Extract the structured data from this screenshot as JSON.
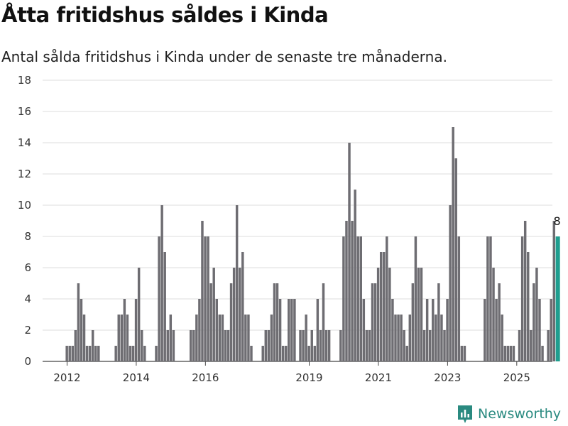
{
  "title": "Åtta fritidshus såldes i Kinda",
  "subtitle": "Antal sålda fritidshus i Kinda under de senaste tre månaderna.",
  "brand": {
    "name": "Newsworthy",
    "icon": "newsworthy-logo-icon",
    "color": "#2a8a80"
  },
  "chart_data": {
    "type": "bar",
    "title": "Åtta fritidshus såldes i Kinda",
    "subtitle": "Antal sålda fritidshus i Kinda under de senaste tre månaderna.",
    "ylim": [
      0,
      18
    ],
    "yticks": [
      0,
      2,
      4,
      6,
      8,
      10,
      12,
      14,
      16,
      18
    ],
    "xticks": [
      {
        "label": "2012",
        "month_index": 7
      },
      {
        "label": "2014",
        "month_index": 31
      },
      {
        "label": "2016",
        "month_index": 55
      },
      {
        "label": "2019",
        "month_index": 91
      },
      {
        "label": "2021",
        "month_index": 115
      },
      {
        "label": "2023",
        "month_index": 139
      },
      {
        "label": "2025",
        "month_index": 163
      }
    ],
    "grid": true,
    "bar_color": "#6e6d72",
    "highlight_color": "#1f9e8f",
    "start_month": "2011-06",
    "values": [
      0,
      0,
      0,
      0,
      0,
      0,
      0,
      1,
      1,
      1,
      2,
      5,
      4,
      3,
      1,
      1,
      2,
      1,
      1,
      0,
      0,
      0,
      0,
      0,
      1,
      3,
      3,
      4,
      3,
      1,
      1,
      4,
      6,
      2,
      1,
      0,
      0,
      0,
      1,
      8,
      10,
      7,
      2,
      3,
      2,
      0,
      0,
      0,
      0,
      0,
      2,
      2,
      3,
      4,
      9,
      8,
      8,
      5,
      6,
      4,
      3,
      3,
      2,
      2,
      5,
      6,
      10,
      6,
      7,
      3,
      3,
      1,
      0,
      0,
      0,
      1,
      2,
      2,
      3,
      5,
      5,
      4,
      1,
      1,
      4,
      4,
      4,
      0,
      2,
      2,
      3,
      1,
      2,
      1,
      4,
      2,
      5,
      2,
      2,
      0,
      0,
      0,
      2,
      8,
      9,
      14,
      9,
      11,
      8,
      8,
      4,
      2,
      2,
      5,
      5,
      6,
      7,
      7,
      8,
      6,
      4,
      3,
      3,
      3,
      2,
      1,
      3,
      5,
      8,
      6,
      6,
      2,
      4,
      2,
      4,
      3,
      5,
      3,
      2,
      4,
      10,
      15,
      13,
      8,
      1,
      1,
      0,
      0,
      0,
      0,
      0,
      0,
      4,
      8,
      8,
      6,
      4,
      5,
      3,
      1,
      1,
      1,
      1,
      0,
      2,
      8,
      9,
      7,
      2,
      5,
      6,
      4,
      1,
      0,
      2,
      4,
      9,
      8
    ],
    "last_value_label": "8"
  }
}
